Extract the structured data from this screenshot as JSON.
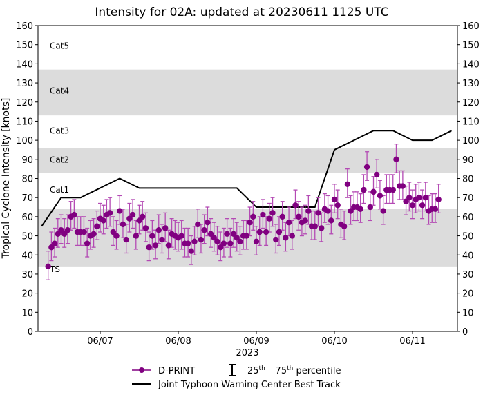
{
  "chart_data": {
    "type": "scatter",
    "title": "Intensity for 02A: updated at 20230611 1125 UTC",
    "ylabel": "Tropical Cyclone Intensity [knots]",
    "xlabel": "2023",
    "ylim": [
      0,
      160
    ],
    "yticks": [
      0,
      10,
      20,
      30,
      40,
      50,
      60,
      70,
      80,
      90,
      100,
      110,
      120,
      130,
      140,
      150,
      160
    ],
    "xticks": [
      "06/07",
      "06/08",
      "06/09",
      "06/10",
      "06/11"
    ],
    "grid": false,
    "legend_position": "bottom",
    "colors": {
      "dprint": "#800080",
      "errbar": "#b44ab4",
      "track": "#000000",
      "band": "#dcdcdc"
    },
    "categories": [
      {
        "label": "TS",
        "shaded": true,
        "range": [
          34,
          64
        ]
      },
      {
        "label": "Cat1",
        "shaded": false,
        "range": [
          64,
          83
        ]
      },
      {
        "label": "Cat2",
        "shaded": true,
        "range": [
          83,
          96
        ]
      },
      {
        "label": "Cat3",
        "shaded": false,
        "range": [
          96,
          113
        ]
      },
      {
        "label": "Cat4",
        "shaded": true,
        "range": [
          113,
          137
        ]
      },
      {
        "label": "Cat5",
        "shaded": false,
        "range": [
          137,
          160
        ]
      }
    ],
    "legend": {
      "dprint": "D-PRINT",
      "percentile_pre": "25",
      "th": "th",
      "dash": " – ",
      "percentile_post": "75",
      "th2": "th",
      "percentile_suffix": " percentile",
      "track": "Joint Typhoon Warning Center Best Track"
    },
    "best_track": {
      "x": [
        "06/06 06Z",
        "06/06 12Z",
        "06/06 18Z",
        "06/07 06Z",
        "06/07 12Z",
        "06/08 18Z",
        "06/09 00Z",
        "06/09 18Z",
        "06/10 00Z",
        "06/10 06Z",
        "06/10 12Z",
        "06/10 18Z",
        "06/11 00Z",
        "06/11 06Z",
        "06/11 12Z"
      ],
      "y": [
        55,
        70,
        70,
        80,
        75,
        75,
        65,
        65,
        95,
        100,
        105,
        105,
        100,
        100,
        105
      ]
    },
    "dprint": {
      "start": "06/06 08Z",
      "step_hours": 1,
      "y": [
        34,
        44,
        46,
        51,
        53,
        51,
        53,
        60,
        61,
        52,
        52,
        52,
        46,
        50,
        51,
        55,
        59,
        58,
        61,
        62,
        52,
        50,
        63,
        56,
        48,
        59,
        61,
        50,
        58,
        60,
        54,
        44,
        50,
        45,
        53,
        48,
        54,
        45,
        51,
        50,
        49,
        50,
        46,
        46,
        42,
        47,
        56,
        48,
        53,
        57,
        51,
        49,
        47,
        44,
        46,
        51,
        46,
        51,
        49,
        47,
        50,
        50,
        57,
        60,
        47,
        52,
        61,
        52,
        59,
        62,
        48,
        52,
        60,
        49,
        57,
        50,
        66,
        60,
        57,
        58,
        63,
        55,
        55,
        62,
        54,
        64,
        63,
        58,
        69,
        66,
        56,
        55,
        77,
        63,
        65,
        65,
        64,
        74,
        86,
        65,
        73,
        82,
        71,
        63,
        74,
        74,
        74,
        90,
        76,
        76,
        68,
        70,
        66,
        69,
        70,
        66,
        70,
        63,
        64,
        64,
        69
      ],
      "p25": [
        27,
        37,
        39,
        44,
        46,
        44,
        46,
        53,
        54,
        45,
        45,
        45,
        39,
        43,
        44,
        48,
        52,
        51,
        54,
        55,
        45,
        43,
        56,
        49,
        41,
        52,
        54,
        43,
        51,
        53,
        47,
        37,
        43,
        38,
        46,
        41,
        47,
        38,
        44,
        43,
        42,
        43,
        39,
        39,
        35,
        40,
        49,
        41,
        46,
        50,
        44,
        42,
        40,
        37,
        39,
        44,
        39,
        44,
        42,
        40,
        43,
        43,
        50,
        53,
        40,
        45,
        54,
        45,
        52,
        55,
        41,
        45,
        53,
        42,
        50,
        43,
        59,
        53,
        50,
        51,
        56,
        48,
        48,
        55,
        47,
        57,
        56,
        51,
        62,
        59,
        49,
        48,
        70,
        56,
        58,
        58,
        57,
        67,
        79,
        58,
        66,
        75,
        64,
        56,
        67,
        67,
        67,
        83,
        69,
        69,
        61,
        63,
        59,
        62,
        63,
        59,
        63,
        56,
        57,
        57,
        62
      ],
      "p75": [
        42,
        52,
        54,
        59,
        61,
        59,
        61,
        68,
        69,
        60,
        60,
        60,
        54,
        58,
        59,
        63,
        67,
        66,
        69,
        70,
        60,
        58,
        71,
        64,
        56,
        67,
        69,
        58,
        66,
        68,
        62,
        52,
        58,
        53,
        61,
        56,
        62,
        53,
        59,
        58,
        57,
        58,
        54,
        54,
        50,
        55,
        64,
        56,
        61,
        65,
        59,
        57,
        55,
        52,
        54,
        59,
        54,
        59,
        57,
        55,
        58,
        58,
        65,
        68,
        55,
        60,
        69,
        60,
        67,
        70,
        56,
        60,
        68,
        57,
        65,
        58,
        74,
        68,
        65,
        66,
        71,
        63,
        63,
        70,
        62,
        72,
        71,
        66,
        77,
        74,
        64,
        63,
        85,
        71,
        73,
        73,
        72,
        82,
        94,
        73,
        81,
        90,
        79,
        71,
        82,
        82,
        82,
        98,
        84,
        84,
        76,
        78,
        74,
        77,
        78,
        74,
        78,
        71,
        72,
        72,
        77
      ]
    }
  }
}
